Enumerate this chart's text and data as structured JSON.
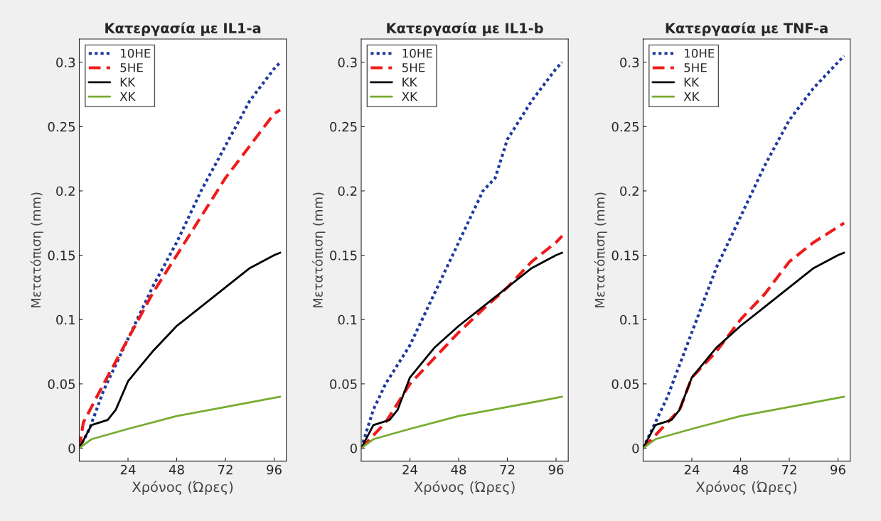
{
  "chart_data": [
    {
      "type": "line",
      "title": "Κατεργασία με IL1-a",
      "xlabel": "Χρόνος (Ώρες)",
      "ylabel": "Μετατόπιση (mm)",
      "xlim": [
        0,
        102
      ],
      "xticks": [
        24,
        48,
        72,
        96
      ],
      "ylim": [
        -0.01,
        0.318
      ],
      "yticks": [
        0,
        0.05,
        0.1,
        0.15,
        0.2,
        0.25,
        0.3
      ],
      "legend": "top left",
      "grid": false,
      "series": [
        {
          "name": "10HE",
          "color": "#1f3a9c",
          "line_style": "dotted",
          "x": [
            0,
            5,
            12,
            24,
            36,
            48,
            60,
            72,
            84,
            96,
            99
          ],
          "values": [
            0,
            0.015,
            0.045,
            0.085,
            0.125,
            0.16,
            0.2,
            0.235,
            0.27,
            0.295,
            0.3
          ]
        },
        {
          "name": "5HE",
          "color": "#f01a1a",
          "line_style": "dashed",
          "x": [
            0,
            2,
            12,
            24,
            36,
            48,
            60,
            72,
            84,
            96,
            99
          ],
          "values": [
            0,
            0.02,
            0.05,
            0.085,
            0.12,
            0.15,
            0.18,
            0.21,
            0.235,
            0.26,
            0.263
          ]
        },
        {
          "name": "KK",
          "color": "#000000",
          "line_style": "solid",
          "x": [
            0,
            6,
            14,
            18,
            24,
            36,
            48,
            60,
            72,
            84,
            96,
            99
          ],
          "values": [
            0,
            0.018,
            0.022,
            0.03,
            0.052,
            0.075,
            0.095,
            0.11,
            0.125,
            0.14,
            0.15,
            0.152
          ]
        },
        {
          "name": "XK",
          "color": "#77ac30",
          "line_style": "solid",
          "x": [
            0,
            6,
            24,
            48,
            72,
            99
          ],
          "values": [
            0,
            0.007,
            0.015,
            0.025,
            0.032,
            0.04
          ]
        }
      ]
    },
    {
      "type": "line",
      "title": "Κατεργασία με IL1-b",
      "xlabel": "Χρόνος (Ώρες)",
      "ylabel": "Μετατόπιση (mm)",
      "xlim": [
        0,
        102
      ],
      "xticks": [
        24,
        48,
        72,
        96
      ],
      "ylim": [
        -0.01,
        0.318
      ],
      "yticks": [
        0,
        0.05,
        0.1,
        0.15,
        0.2,
        0.25,
        0.3
      ],
      "legend": "top left",
      "grid": false,
      "series": [
        {
          "name": "10HE",
          "color": "#1f3a9c",
          "line_style": "dotted",
          "x": [
            0,
            6,
            12,
            24,
            36,
            48,
            60,
            66,
            72,
            84,
            96,
            99
          ],
          "values": [
            0,
            0.03,
            0.05,
            0.08,
            0.12,
            0.16,
            0.2,
            0.21,
            0.24,
            0.27,
            0.295,
            0.3
          ]
        },
        {
          "name": "5HE",
          "color": "#f01a1a",
          "line_style": "dashed",
          "x": [
            0,
            12,
            24,
            36,
            48,
            60,
            72,
            84,
            96,
            99
          ],
          "values": [
            0,
            0.02,
            0.05,
            0.07,
            0.09,
            0.108,
            0.125,
            0.145,
            0.16,
            0.165
          ]
        },
        {
          "name": "KK",
          "color": "#000000",
          "line_style": "solid",
          "x": [
            0,
            6,
            14,
            18,
            24,
            36,
            48,
            60,
            72,
            84,
            96,
            99
          ],
          "values": [
            0,
            0.018,
            0.022,
            0.03,
            0.055,
            0.078,
            0.095,
            0.11,
            0.125,
            0.14,
            0.15,
            0.152
          ]
        },
        {
          "name": "XK",
          "color": "#77ac30",
          "line_style": "solid",
          "x": [
            0,
            6,
            24,
            48,
            72,
            99
          ],
          "values": [
            0,
            0.007,
            0.015,
            0.025,
            0.032,
            0.04
          ]
        }
      ]
    },
    {
      "type": "line",
      "title": "Κατεργασία με TNF-a",
      "xlabel": "Χρόνος (Ώρες)",
      "ylabel": "Μετατόπιση (mm)",
      "xlim": [
        0,
        102
      ],
      "xticks": [
        24,
        48,
        72,
        96
      ],
      "ylim": [
        -0.01,
        0.318
      ],
      "yticks": [
        0,
        0.05,
        0.1,
        0.15,
        0.2,
        0.25,
        0.3
      ],
      "legend": "top left",
      "grid": false,
      "series": [
        {
          "name": "10HE",
          "color": "#1f3a9c",
          "line_style": "dotted",
          "x": [
            0,
            12,
            24,
            36,
            48,
            60,
            72,
            84,
            99
          ],
          "values": [
            0,
            0.04,
            0.09,
            0.14,
            0.18,
            0.22,
            0.255,
            0.28,
            0.305
          ]
        },
        {
          "name": "5HE",
          "color": "#f01a1a",
          "line_style": "dashed",
          "x": [
            0,
            12,
            18,
            24,
            36,
            48,
            60,
            72,
            84,
            99
          ],
          "values": [
            0,
            0.02,
            0.03,
            0.055,
            0.075,
            0.1,
            0.12,
            0.145,
            0.16,
            0.175
          ]
        },
        {
          "name": "KK",
          "color": "#000000",
          "line_style": "solid",
          "x": [
            0,
            6,
            14,
            18,
            24,
            36,
            48,
            60,
            72,
            84,
            96,
            99
          ],
          "values": [
            0,
            0.018,
            0.022,
            0.03,
            0.055,
            0.078,
            0.095,
            0.11,
            0.125,
            0.14,
            0.15,
            0.152
          ]
        },
        {
          "name": "XK",
          "color": "#77ac30",
          "line_style": "solid",
          "x": [
            0,
            6,
            24,
            48,
            72,
            99
          ],
          "values": [
            0,
            0.007,
            0.015,
            0.025,
            0.032,
            0.04
          ]
        }
      ]
    }
  ]
}
